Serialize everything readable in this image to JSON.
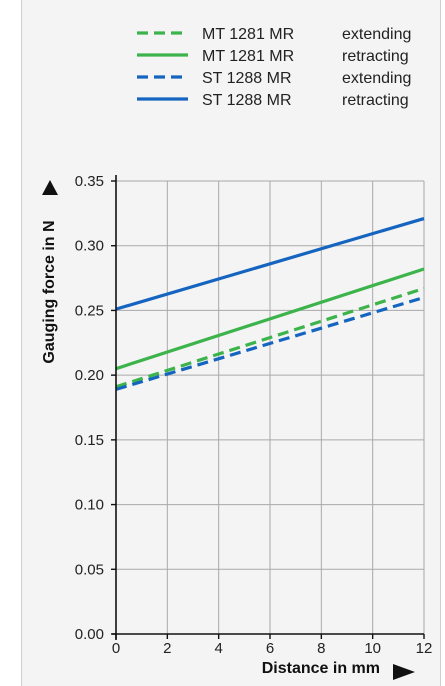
{
  "chart_data": {
    "type": "line",
    "xlabel": "Distance in mm",
    "ylabel": "Gauging force in N",
    "xlim": [
      0,
      12
    ],
    "ylim": [
      0,
      0.35
    ],
    "x_ticks": [
      0,
      2,
      4,
      6,
      8,
      10,
      12
    ],
    "y_ticks": [
      0.0,
      0.05,
      0.1,
      0.15,
      0.2,
      0.25,
      0.3,
      0.35
    ],
    "x_tick_labels": [
      "0",
      "2",
      "4",
      "6",
      "8",
      "10",
      "12"
    ],
    "y_tick_labels": [
      "0.00",
      "0.05",
      "0.10",
      "0.15",
      "0.20",
      "0.25",
      "0.30",
      "0.35"
    ],
    "grid": true,
    "legend_position": "top-right",
    "series": [
      {
        "name": "MT 1281 MR",
        "mode": "extending",
        "color": "#3cb44b",
        "dash": "dashed",
        "x": [
          0,
          12
        ],
        "y": [
          0.191,
          0.267
        ]
      },
      {
        "name": "MT 1281 MR",
        "mode": "retracting",
        "color": "#3cb44b",
        "dash": "solid",
        "x": [
          0,
          12
        ],
        "y": [
          0.205,
          0.282
        ]
      },
      {
        "name": "ST 1288 MR",
        "mode": "extending",
        "color": "#1565c0",
        "dash": "dashed",
        "x": [
          0,
          12
        ],
        "y": [
          0.189,
          0.26
        ]
      },
      {
        "name": "ST 1288 MR",
        "mode": "retracting",
        "color": "#1565c0",
        "dash": "solid",
        "x": [
          0,
          12
        ],
        "y": [
          0.251,
          0.321
        ]
      }
    ]
  }
}
